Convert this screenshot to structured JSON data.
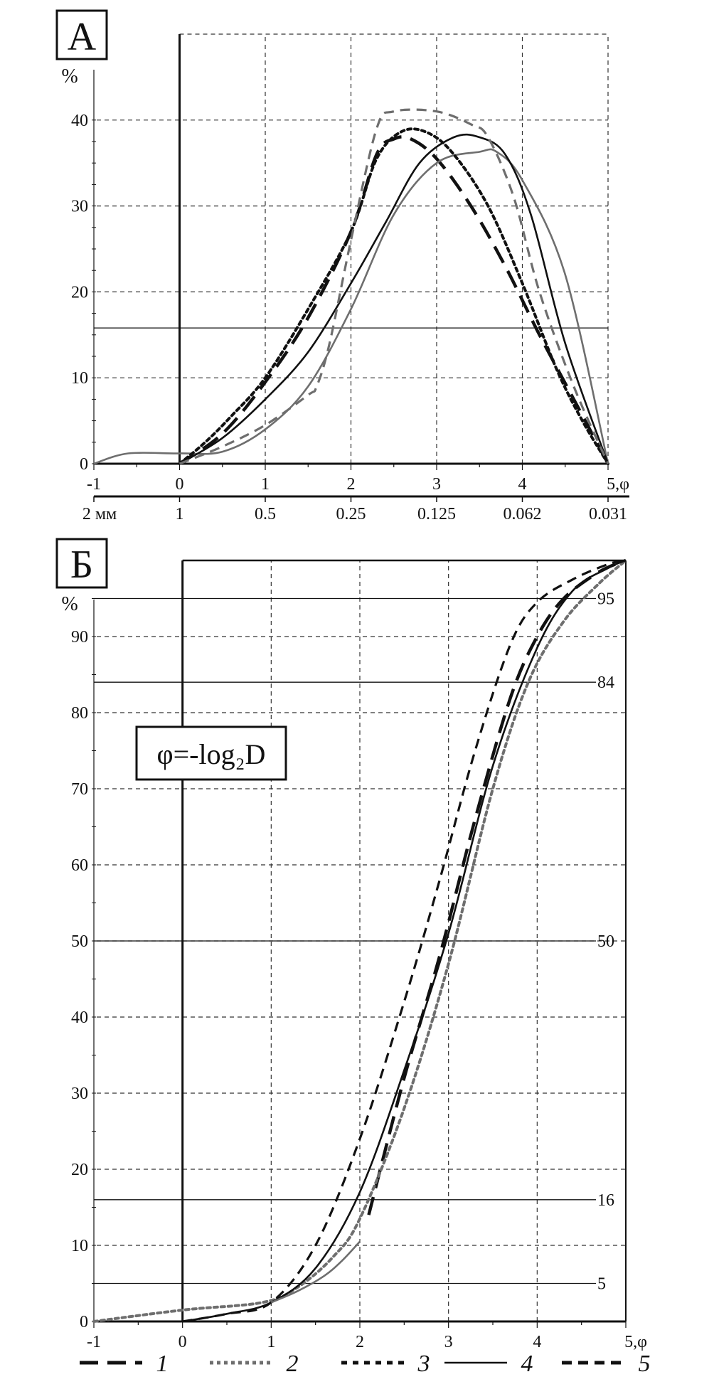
{
  "colors": {
    "black": "#111111",
    "gray": "#6e6e6e",
    "grid": "#333333"
  },
  "panels": [
    {
      "label": "А",
      "ylabel": "%",
      "xlabel_suffix": ",φ",
      "xlim": [
        -1,
        5
      ],
      "ylim": [
        0,
        50
      ],
      "yticks": [
        0,
        10,
        20,
        30,
        40
      ],
      "xticks": [
        -1,
        0,
        1,
        2,
        3,
        4,
        5
      ],
      "reference_lines": [
        15.8
      ],
      "mm_scale": [
        {
          "phi": -1,
          "label": "2 мм"
        },
        {
          "phi": 0,
          "label": "1"
        },
        {
          "phi": 1,
          "label": "0.5"
        },
        {
          "phi": 2,
          "label": "0.25"
        },
        {
          "phi": 3,
          "label": "0.125"
        },
        {
          "phi": 4,
          "label": "0.062"
        },
        {
          "phi": 5,
          "label": "0.031"
        }
      ]
    },
    {
      "label": "Б",
      "ylabel": "%",
      "xlabel_suffix": ",φ",
      "xlim": [
        -1,
        5
      ],
      "ylim": [
        0,
        100
      ],
      "yticks": [
        0,
        10,
        20,
        30,
        40,
        50,
        60,
        70,
        80,
        90
      ],
      "xticks": [
        -1,
        0,
        1,
        2,
        3,
        4,
        5
      ],
      "percentile_lines": [
        "95",
        "84",
        "50",
        "16",
        "5"
      ],
      "formula": "φ=-log₂D"
    }
  ],
  "legend": [
    "1",
    "2",
    "3",
    "4",
    "5"
  ],
  "chart_data": [
    {
      "type": "line",
      "title": "А",
      "ylabel": "%",
      "xlabel": "φ",
      "xlim": [
        -1,
        5
      ],
      "ylim": [
        0,
        50
      ],
      "grid": true,
      "series": [
        {
          "name": "1",
          "style": "long-dash",
          "color": "#111111",
          "points": [
            [
              0,
              0
            ],
            [
              0.5,
              3.5
            ],
            [
              1,
              9.5
            ],
            [
              1.5,
              17
            ],
            [
              2,
              27
            ],
            [
              2.3,
              36
            ],
            [
              2.5,
              37.8
            ],
            [
              2.7,
              37.8
            ],
            [
              3,
              35.5
            ],
            [
              3.4,
              30
            ],
            [
              3.8,
              23
            ],
            [
              4.2,
              15
            ],
            [
              4.6,
              7.5
            ],
            [
              5,
              0
            ]
          ]
        },
        {
          "name": "2",
          "style": "solid",
          "color": "#6e6e6e",
          "points": [
            [
              -1,
              0
            ],
            [
              -0.6,
              1.2
            ],
            [
              0,
              1.2
            ],
            [
              0.5,
              1.4
            ],
            [
              1,
              4
            ],
            [
              1.5,
              9
            ],
            [
              2,
              18
            ],
            [
              2.5,
              29
            ],
            [
              3,
              35
            ],
            [
              3.5,
              36.3
            ],
            [
              3.7,
              36.3
            ],
            [
              4,
              33
            ],
            [
              4.5,
              22
            ],
            [
              5,
              0
            ]
          ]
        },
        {
          "name": "3",
          "style": "dotted",
          "color": "#111111",
          "points": [
            [
              0,
              0
            ],
            [
              0.3,
              2.5
            ],
            [
              0.6,
              5.5
            ],
            [
              1,
              10
            ],
            [
              1.5,
              18
            ],
            [
              2,
              27
            ],
            [
              2.3,
              35.5
            ],
            [
              2.6,
              38.7
            ],
            [
              2.9,
              38.5
            ],
            [
              3.2,
              36
            ],
            [
              3.6,
              30
            ],
            [
              4,
              21
            ],
            [
              4.4,
              11
            ],
            [
              4.7,
              5
            ],
            [
              5,
              0
            ]
          ]
        },
        {
          "name": "4",
          "style": "solid",
          "color": "#111111",
          "points": [
            [
              0,
              0
            ],
            [
              0.5,
              3
            ],
            [
              1,
              7.5
            ],
            [
              1.5,
              13
            ],
            [
              2,
              21
            ],
            [
              2.4,
              28
            ],
            [
              2.8,
              35
            ],
            [
              3.2,
              38
            ],
            [
              3.5,
              38
            ],
            [
              3.8,
              36
            ],
            [
              4.1,
              29
            ],
            [
              4.5,
              14
            ],
            [
              5,
              0
            ]
          ]
        },
        {
          "name": "5",
          "style": "dashed",
          "color": "#6e6e6e",
          "points": [
            [
              0,
              0
            ],
            [
              0.5,
              2
            ],
            [
              1,
              4.5
            ],
            [
              1.5,
              8
            ],
            [
              1.6,
              9
            ],
            [
              1.75,
              14
            ],
            [
              2,
              26
            ],
            [
              2.3,
              39
            ],
            [
              2.5,
              41
            ],
            [
              3,
              41
            ],
            [
              3.4,
              39.5
            ],
            [
              3.6,
              38
            ],
            [
              3.9,
              31
            ],
            [
              4.2,
              20
            ],
            [
              4.6,
              9
            ],
            [
              5,
              0
            ]
          ]
        }
      ]
    },
    {
      "type": "line",
      "title": "Б",
      "ylabel": "%",
      "xlabel": "φ",
      "xlim": [
        -1,
        5
      ],
      "ylim": [
        0,
        100
      ],
      "grid": true,
      "series": [
        {
          "name": "1",
          "style": "long-dash",
          "color": "#111111",
          "points": [
            [
              2.1,
              14
            ],
            [
              2.5,
              32
            ],
            [
              2.9,
              48
            ],
            [
              3.3,
              66
            ],
            [
              3.7,
              82
            ],
            [
              4,
              90
            ],
            [
              4.3,
              95
            ],
            [
              4.7,
              98.5
            ],
            [
              5,
              100
            ]
          ]
        },
        {
          "name": "2",
          "style": "dotted",
          "color": "#6e6e6e",
          "points": [
            [
              -1,
              0
            ],
            [
              0,
              1.5
            ],
            [
              0.9,
              2.5
            ],
            [
              1.3,
              4.5
            ],
            [
              1.7,
              8.5
            ],
            [
              2,
              13.5
            ],
            [
              2.5,
              28
            ],
            [
              3,
              47
            ],
            [
              3.5,
              70
            ],
            [
              3.9,
              84
            ],
            [
              4.3,
              92
            ],
            [
              4.7,
              97
            ],
            [
              5,
              100
            ]
          ]
        },
        {
          "name": "3",
          "style": "dashed",
          "color": "#111111",
          "points": [
            [
              0,
              0
            ],
            [
              0.5,
              1
            ],
            [
              1,
              2.5
            ],
            [
              1.5,
              10
            ],
            [
              2,
              24
            ],
            [
              2.5,
              42
            ],
            [
              2.9,
              58
            ],
            [
              3.3,
              75
            ],
            [
              3.7,
              89
            ],
            [
              4,
              94.5
            ],
            [
              4.4,
              97.5
            ],
            [
              4.8,
              99.5
            ],
            [
              5,
              100
            ]
          ]
        },
        {
          "name": "4",
          "style": "solid",
          "color": "#111111",
          "points": [
            [
              0,
              0
            ],
            [
              0.5,
              1
            ],
            [
              1,
              2.5
            ],
            [
              1.5,
              7
            ],
            [
              2,
              17
            ],
            [
              2.5,
              33
            ],
            [
              3,
              51
            ],
            [
              3.5,
              73
            ],
            [
              4,
              88.5
            ],
            [
              4.4,
              96
            ],
            [
              4.8,
              99
            ],
            [
              5,
              100
            ]
          ]
        },
        {
          "name": "5",
          "style": "solid",
          "color": "#6e6e6e",
          "points": [
            [
              1,
              2.5
            ],
            [
              1.3,
              4
            ],
            [
              1.6,
              6
            ],
            [
              1.8,
              8
            ],
            [
              2,
              10.5
            ]
          ]
        }
      ]
    }
  ]
}
